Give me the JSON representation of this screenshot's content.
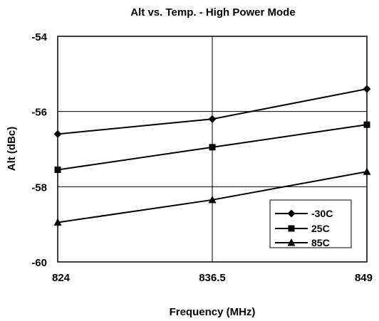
{
  "chart_data": {
    "type": "line",
    "title": "Alt vs. Temp. - High Power Mode",
    "xlabel": "Frequency (MHz)",
    "ylabel": "Alt (dBc)",
    "x": [
      824,
      836.5,
      849
    ],
    "x_tick_labels": [
      "824",
      "836.5",
      "849"
    ],
    "xlim": [
      824,
      849
    ],
    "ylim": [
      -60,
      -54
    ],
    "y_ticks": [
      -60,
      -58,
      -56,
      -54
    ],
    "y_tick_labels": [
      "-60",
      "-58",
      "-56",
      "-54"
    ],
    "grid": true,
    "legend_position": "bottom-right",
    "series": [
      {
        "name": "-30C",
        "marker": "diamond",
        "values": [
          -56.6,
          -56.2,
          -55.4
        ]
      },
      {
        "name": "25C",
        "marker": "square",
        "values": [
          -57.55,
          -56.95,
          -56.35
        ]
      },
      {
        "name": "85C",
        "marker": "triangle",
        "values": [
          -58.95,
          -58.35,
          -57.6
        ]
      }
    ],
    "colors": {
      "line": "#000000",
      "grid": "#000000",
      "background": "#ffffff"
    }
  }
}
